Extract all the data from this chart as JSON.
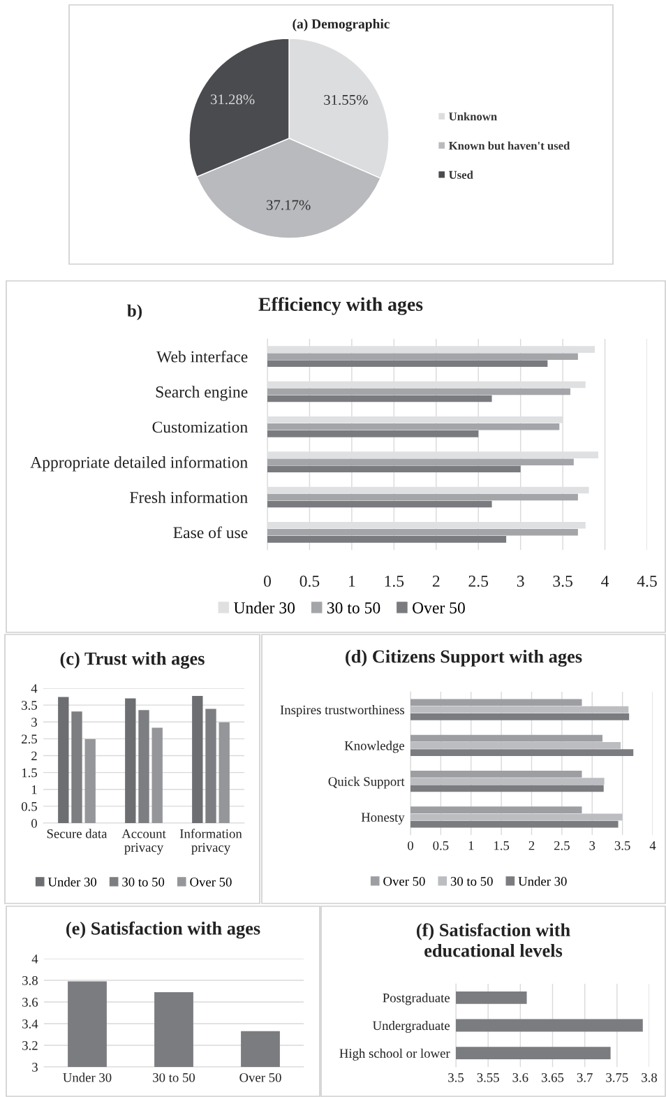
{
  "chart_data": [
    {
      "type": "pie",
      "title": "(a) Demographic",
      "categories": [
        "Unknown",
        "Known but haven't used",
        "Used"
      ],
      "values": [
        31.55,
        37.17,
        31.28
      ],
      "colors": [
        "#dcdddf",
        "#b9babd",
        "#4a4b4f"
      ],
      "value_labels": [
        "31.55%",
        "37.17%",
        "31.28%"
      ],
      "legend": "right"
    },
    {
      "type": "bar",
      "orientation": "horizontal",
      "title": "Efficiency with ages",
      "annotations": [
        "b)"
      ],
      "categories": [
        "Web interface",
        "Search engine",
        "Customization",
        "Appropriate detailed information",
        "Fresh information",
        "Ease of use"
      ],
      "series": [
        {
          "name": "Under 30",
          "color": "#dfe0e2",
          "values": [
            3.88,
            3.77,
            3.5,
            3.92,
            3.81,
            3.77
          ]
        },
        {
          "name": "30 to 50",
          "color": "#a4a5a9",
          "values": [
            3.68,
            3.59,
            3.46,
            3.63,
            3.68,
            3.68
          ]
        },
        {
          "name": "Over 50",
          "color": "#7a7b7f",
          "values": [
            3.32,
            2.66,
            2.5,
            3.0,
            2.66,
            2.83
          ]
        }
      ],
      "xlim": [
        0,
        4.5
      ],
      "xticks": [
        0,
        0.5,
        1,
        1.5,
        2,
        2.5,
        3,
        3.5,
        4,
        4.5
      ],
      "grid": "x",
      "legend": "bottom"
    },
    {
      "type": "bar",
      "title": "(c) Trust with ages",
      "categories": [
        "Secure data",
        "Account\nprivacy",
        "Information\nprivacy"
      ],
      "series": [
        {
          "name": "Under 30",
          "color": "#6d6e72",
          "values": [
            3.74,
            3.7,
            3.77
          ]
        },
        {
          "name": "30 to 50",
          "color": "#7d7e82",
          "values": [
            3.31,
            3.35,
            3.39
          ]
        },
        {
          "name": "Over 50",
          "color": "#95969a",
          "values": [
            2.49,
            2.83,
            2.99
          ]
        }
      ],
      "ylim": [
        0,
        4
      ],
      "yticks": [
        0,
        0.5,
        1,
        1.5,
        2,
        2.5,
        3,
        3.5,
        4
      ],
      "grid": "y",
      "legend": "bottom"
    },
    {
      "type": "bar",
      "orientation": "horizontal",
      "title": "(d) Citizens Support with ages",
      "categories": [
        "Inspires trustworthiness",
        "Knowledge",
        "Quick Support",
        "Honesty"
      ],
      "series": [
        {
          "name": "Over 50",
          "color": "#9d9ea2",
          "values": [
            2.83,
            3.17,
            2.83,
            2.83
          ]
        },
        {
          "name": "30 to 50",
          "color": "#bcbdc0",
          "values": [
            3.6,
            3.47,
            3.2,
            3.5
          ]
        },
        {
          "name": "Under 30",
          "color": "#7b7c80",
          "values": [
            3.61,
            3.68,
            3.19,
            3.43
          ]
        }
      ],
      "xlim": [
        0,
        4
      ],
      "xticks": [
        0,
        0.5,
        1,
        1.5,
        2,
        2.5,
        3,
        3.5,
        4
      ],
      "grid": "x",
      "legend": "bottom"
    },
    {
      "type": "bar",
      "title": "(e) Satisfaction with ages",
      "categories": [
        "Under 30",
        "30 to 50",
        "Over 50"
      ],
      "series": [
        {
          "color": "#7b7c80",
          "values": [
            3.79,
            3.69,
            3.33
          ]
        }
      ],
      "ylim": [
        3,
        4
      ],
      "yticks": [
        3,
        3.2,
        3.4,
        3.6,
        3.8,
        4
      ],
      "grid": "y"
    },
    {
      "type": "bar",
      "orientation": "horizontal",
      "title": "(f) Satisfaction with\neducational levels",
      "categories": [
        "Postgraduate",
        "Undergraduate",
        "High school or lower"
      ],
      "series": [
        {
          "color": "#7b7c80",
          "values": [
            3.61,
            3.79,
            3.74
          ]
        }
      ],
      "xlim": [
        3.5,
        3.8
      ],
      "xticks": [
        3.5,
        3.55,
        3.6,
        3.65,
        3.7,
        3.75,
        3.8
      ],
      "grid": "x"
    }
  ]
}
